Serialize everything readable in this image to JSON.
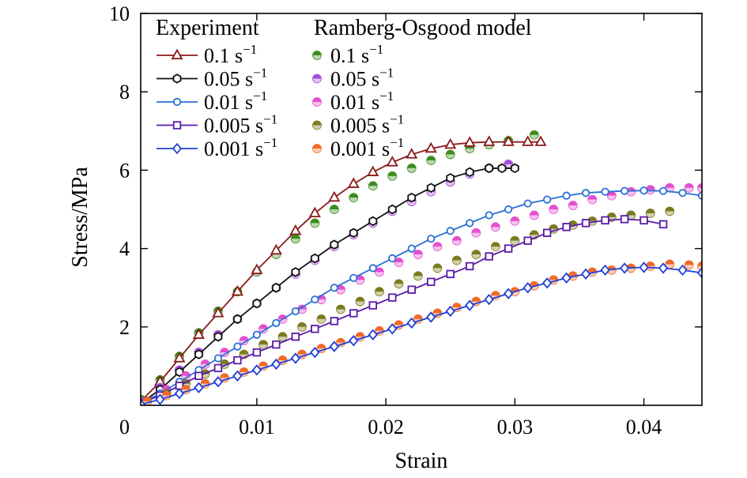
{
  "chart_data": {
    "type": "line",
    "xlabel": "Strain",
    "ylabel": "Stress/MPa",
    "xlim": [
      0.001,
      0.0445
    ],
    "ylim": [
      0,
      10
    ],
    "x_ticks": [
      0.01,
      0.02,
      0.03,
      0.04
    ],
    "x_tick_labels": [
      "0.01",
      "0.02",
      "0.03",
      "0.04"
    ],
    "y_ticks": [
      2,
      4,
      6,
      8,
      10
    ],
    "y_tick_labels": [
      "2",
      "4",
      "6",
      "8",
      "10"
    ],
    "origin_label": "0",
    "grid": false,
    "legend": {
      "placement": "top-left",
      "experiment_header": "Experiment",
      "model_header": "Ramberg-Osgood model"
    },
    "series_groups": [
      {
        "rate_label": "0.1 s",
        "rate_sup": "−1",
        "experiment": {
          "color": "#8b1a1a",
          "marker": "triangle",
          "x": [
            0.001,
            0.0025,
            0.004,
            0.0055,
            0.007,
            0.0085,
            0.01,
            0.0115,
            0.013,
            0.0145,
            0.016,
            0.0175,
            0.019,
            0.0205,
            0.022,
            0.0235,
            0.025,
            0.0265,
            0.028,
            0.0295,
            0.031,
            0.032
          ],
          "y": [
            0.1,
            0.6,
            1.2,
            1.8,
            2.35,
            2.9,
            3.45,
            3.95,
            4.45,
            4.9,
            5.3,
            5.65,
            5.95,
            6.2,
            6.4,
            6.55,
            6.65,
            6.7,
            6.72,
            6.72,
            6.72,
            6.72
          ]
        },
        "model": {
          "color": "#3d8c1f",
          "x": [
            0.001,
            0.0025,
            0.004,
            0.0055,
            0.007,
            0.0085,
            0.01,
            0.0115,
            0.013,
            0.0145,
            0.016,
            0.0175,
            0.019,
            0.0205,
            0.022,
            0.0235,
            0.025,
            0.0265,
            0.028,
            0.0295,
            0.0315
          ],
          "y": [
            0.15,
            0.65,
            1.25,
            1.85,
            2.4,
            2.9,
            3.4,
            3.85,
            4.25,
            4.65,
            5.0,
            5.3,
            5.6,
            5.85,
            6.05,
            6.25,
            6.4,
            6.55,
            6.65,
            6.75,
            6.9
          ]
        }
      },
      {
        "rate_label": "0.05 s",
        "rate_sup": "−1",
        "experiment": {
          "color": "#111111",
          "marker": "hexagon",
          "x": [
            0.001,
            0.0025,
            0.004,
            0.0055,
            0.007,
            0.0085,
            0.01,
            0.0115,
            0.013,
            0.0145,
            0.016,
            0.0175,
            0.019,
            0.0205,
            0.022,
            0.0235,
            0.025,
            0.0265,
            0.028,
            0.029,
            0.03
          ],
          "y": [
            0.05,
            0.4,
            0.85,
            1.3,
            1.75,
            2.2,
            2.6,
            3.0,
            3.4,
            3.75,
            4.1,
            4.4,
            4.7,
            5.0,
            5.3,
            5.55,
            5.8,
            5.95,
            6.05,
            6.05,
            6.05
          ]
        },
        "model": {
          "color": "#a64ddb",
          "x": [
            0.001,
            0.0025,
            0.004,
            0.0055,
            0.007,
            0.0085,
            0.01,
            0.0115,
            0.013,
            0.0145,
            0.016,
            0.0175,
            0.019,
            0.0205,
            0.022,
            0.0235,
            0.025,
            0.0265,
            0.028,
            0.0295
          ],
          "y": [
            0.1,
            0.45,
            0.9,
            1.35,
            1.8,
            2.2,
            2.6,
            3.0,
            3.35,
            3.7,
            4.05,
            4.35,
            4.65,
            4.95,
            5.2,
            5.45,
            5.7,
            5.9,
            6.05,
            6.15
          ]
        }
      },
      {
        "rate_label": "0.01 s",
        "rate_sup": "−1",
        "experiment": {
          "color": "#2a6fd6",
          "marker": "circle",
          "x": [
            0.001,
            0.0025,
            0.004,
            0.0055,
            0.007,
            0.0085,
            0.01,
            0.0115,
            0.013,
            0.0145,
            0.016,
            0.0175,
            0.019,
            0.0205,
            0.022,
            0.0235,
            0.025,
            0.0265,
            0.028,
            0.0295,
            0.031,
            0.0325,
            0.034,
            0.0355,
            0.037,
            0.0385,
            0.04,
            0.0415,
            0.043,
            0.0445
          ],
          "y": [
            0.05,
            0.3,
            0.6,
            0.9,
            1.2,
            1.5,
            1.8,
            2.1,
            2.4,
            2.7,
            3.0,
            3.25,
            3.5,
            3.75,
            4.0,
            4.25,
            4.45,
            4.65,
            4.85,
            5.0,
            5.15,
            5.25,
            5.35,
            5.42,
            5.45,
            5.47,
            5.48,
            5.47,
            5.42,
            5.35
          ]
        },
        "model": {
          "color": "#e44fd0",
          "x": [
            0.0015,
            0.003,
            0.0045,
            0.006,
            0.0075,
            0.009,
            0.0105,
            0.012,
            0.0135,
            0.015,
            0.0165,
            0.018,
            0.0195,
            0.021,
            0.0225,
            0.024,
            0.0255,
            0.027,
            0.0285,
            0.03,
            0.0315,
            0.033,
            0.0345,
            0.036,
            0.0375,
            0.039,
            0.0405,
            0.042,
            0.0435,
            0.0445
          ],
          "y": [
            0.1,
            0.4,
            0.75,
            1.05,
            1.35,
            1.65,
            1.95,
            2.2,
            2.45,
            2.7,
            2.95,
            3.2,
            3.4,
            3.65,
            3.85,
            4.05,
            4.2,
            4.4,
            4.55,
            4.7,
            4.85,
            5.0,
            5.1,
            5.25,
            5.35,
            5.45,
            5.5,
            5.55,
            5.55,
            5.55
          ]
        }
      },
      {
        "rate_label": "0.005 s",
        "rate_sup": "−1",
        "experiment": {
          "color": "#5a1aa8",
          "marker": "square",
          "x": [
            0.001,
            0.0025,
            0.004,
            0.0055,
            0.007,
            0.0085,
            0.01,
            0.0115,
            0.013,
            0.0145,
            0.016,
            0.0175,
            0.019,
            0.0205,
            0.022,
            0.0235,
            0.025,
            0.0265,
            0.028,
            0.0295,
            0.031,
            0.0325,
            0.034,
            0.0355,
            0.037,
            0.0385,
            0.04,
            0.0415
          ],
          "y": [
            0.05,
            0.25,
            0.5,
            0.75,
            0.95,
            1.15,
            1.35,
            1.55,
            1.75,
            1.95,
            2.15,
            2.35,
            2.55,
            2.75,
            2.95,
            3.15,
            3.35,
            3.55,
            3.8,
            4.0,
            4.2,
            4.4,
            4.55,
            4.65,
            4.72,
            4.75,
            4.72,
            4.62
          ]
        },
        "model": {
          "color": "#7b7b1e",
          "x": [
            0.0015,
            0.003,
            0.0045,
            0.006,
            0.0075,
            0.009,
            0.0105,
            0.012,
            0.0135,
            0.015,
            0.0165,
            0.018,
            0.0195,
            0.021,
            0.0225,
            0.024,
            0.0255,
            0.027,
            0.0285,
            0.03,
            0.0315,
            0.033,
            0.0345,
            0.036,
            0.0375,
            0.039,
            0.0405,
            0.042
          ],
          "y": [
            0.1,
            0.3,
            0.55,
            0.8,
            1.05,
            1.3,
            1.55,
            1.75,
            2.0,
            2.2,
            2.45,
            2.65,
            2.9,
            3.1,
            3.3,
            3.5,
            3.7,
            3.85,
            4.05,
            4.2,
            4.35,
            4.5,
            4.6,
            4.7,
            4.8,
            4.85,
            4.9,
            4.95
          ]
        }
      },
      {
        "rate_label": "0.001 s",
        "rate_sup": "−1",
        "experiment": {
          "color": "#1f3fd8",
          "marker": "diamond",
          "x": [
            0.001,
            0.0025,
            0.004,
            0.0055,
            0.007,
            0.0085,
            0.01,
            0.0115,
            0.013,
            0.0145,
            0.016,
            0.0175,
            0.019,
            0.0205,
            0.022,
            0.0235,
            0.025,
            0.0265,
            0.028,
            0.0295,
            0.031,
            0.0325,
            0.034,
            0.0355,
            0.037,
            0.0385,
            0.04,
            0.0415,
            0.043,
            0.0445
          ],
          "y": [
            0.02,
            0.15,
            0.3,
            0.45,
            0.6,
            0.75,
            0.9,
            1.05,
            1.2,
            1.35,
            1.5,
            1.65,
            1.8,
            1.95,
            2.1,
            2.25,
            2.4,
            2.55,
            2.7,
            2.85,
            3.0,
            3.12,
            3.25,
            3.35,
            3.45,
            3.5,
            3.52,
            3.5,
            3.45,
            3.38
          ]
        },
        "model": {
          "color": "#f06a2a",
          "x": [
            0.0015,
            0.003,
            0.0045,
            0.006,
            0.0075,
            0.009,
            0.0105,
            0.012,
            0.0135,
            0.015,
            0.0165,
            0.018,
            0.0195,
            0.021,
            0.0225,
            0.024,
            0.0255,
            0.027,
            0.0285,
            0.03,
            0.0315,
            0.033,
            0.0345,
            0.036,
            0.0375,
            0.039,
            0.0405,
            0.042,
            0.0435,
            0.0445
          ],
          "y": [
            0.1,
            0.25,
            0.4,
            0.55,
            0.7,
            0.85,
            1.0,
            1.15,
            1.3,
            1.45,
            1.6,
            1.75,
            1.9,
            2.05,
            2.2,
            2.35,
            2.5,
            2.65,
            2.8,
            2.9,
            3.05,
            3.2,
            3.3,
            3.4,
            3.45,
            3.5,
            3.55,
            3.6,
            3.58,
            3.55
          ]
        }
      }
    ]
  }
}
